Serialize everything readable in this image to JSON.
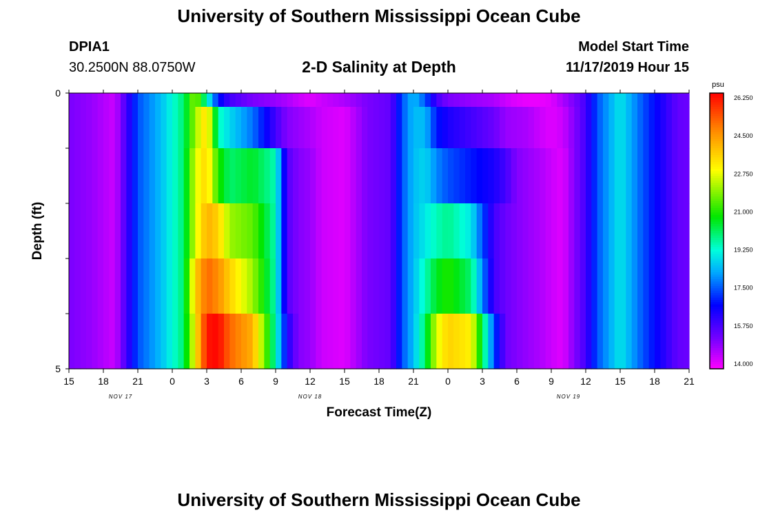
{
  "header": {
    "title": "University of Southern Mississippi Ocean Cube",
    "station": "DPIA1",
    "location": "30.2500N 88.0750W",
    "product": "2-D Salinity at Depth",
    "start_label": "Model Start Time",
    "start_value": "11/17/2019 Hour 15",
    "footer_title": "University of Southern Mississippi Ocean Cube"
  },
  "colorbar": {
    "unit": "psu",
    "ticks": [
      "26.250",
      "24.500",
      "22.750",
      "21.000",
      "19.250",
      "17.500",
      "15.750",
      "14.000"
    ],
    "min": 14.0,
    "max": 26.25
  },
  "chart_data": {
    "type": "heatmap",
    "title": "2-D Salinity at Depth",
    "xlabel": "Forecast Time(Z)",
    "ylabel": "Depth (ft)",
    "y_tick_labels": [
      "0",
      "5"
    ],
    "ylim": [
      0,
      5
    ],
    "x_tick_labels": [
      "15",
      "18",
      "21",
      "0",
      "3",
      "6",
      "9",
      "12",
      "15",
      "18",
      "21",
      "0",
      "3",
      "6",
      "9",
      "12",
      "15",
      "18",
      "21"
    ],
    "date_labels": [
      {
        "label": "NOV 17",
        "hour_index": 4.5
      },
      {
        "label": "NOV 18",
        "hour_index": 21
      },
      {
        "label": "NOV 19",
        "hour_index": 43.5
      }
    ],
    "x_hours_from_start": [
      0,
      54
    ],
    "depth_levels": [
      0,
      0.5,
      1.5,
      2.5,
      3.5,
      4.5
    ],
    "value_unit": "psu",
    "anchor_hours": [
      0,
      2,
      4,
      5,
      6,
      8,
      10,
      11,
      12,
      13,
      14,
      16,
      18,
      19,
      20,
      21,
      22,
      24,
      26,
      28,
      29,
      30,
      31,
      32,
      33,
      35,
      37,
      38,
      39,
      40,
      41,
      42,
      43,
      44,
      45,
      46,
      48,
      50,
      53,
      54
    ],
    "salinity": [
      [
        15.3,
        15.0,
        14.5,
        16.0,
        17.5,
        18.5,
        20.0,
        22.0,
        19.5,
        17.0,
        16.0,
        15.3,
        15.0,
        14.8,
        14.5,
        14.3,
        14.5,
        14.8,
        15.3,
        15.6,
        17.5,
        18.5,
        17.6,
        16.0,
        15.3,
        15.0,
        14.8,
        14.5,
        14.3,
        14.2,
        14.2,
        14.3,
        14.8,
        15.3,
        16.0,
        17.5,
        19.0,
        17.5,
        15.6,
        15.5
      ],
      [
        15.3,
        15.0,
        14.5,
        16.0,
        17.5,
        18.5,
        20.0,
        22.0,
        23.5,
        19.5,
        18.8,
        17.8,
        16.0,
        15.2,
        15.0,
        14.8,
        14.5,
        14.3,
        15.3,
        15.6,
        17.5,
        18.5,
        18.5,
        17.0,
        16.5,
        16.0,
        15.5,
        15.0,
        14.9,
        14.8,
        14.5,
        14.3,
        14.5,
        15.2,
        16.0,
        17.5,
        19.0,
        17.5,
        15.6,
        15.5
      ],
      [
        15.3,
        15.0,
        14.5,
        16.0,
        17.5,
        18.5,
        20.0,
        22.5,
        23.5,
        21.0,
        20.0,
        20.5,
        19.5,
        15.8,
        15.2,
        15.0,
        14.5,
        14.3,
        15.3,
        15.6,
        17.5,
        18.5,
        18.8,
        18.0,
        17.5,
        17.0,
        16.5,
        16.0,
        15.2,
        15.0,
        14.8,
        14.5,
        14.3,
        15.2,
        16.0,
        17.5,
        19.0,
        17.5,
        15.6,
        15.5
      ],
      [
        15.3,
        15.0,
        14.5,
        16.0,
        17.5,
        18.5,
        20.0,
        22.5,
        24.0,
        23.5,
        22.0,
        21.5,
        19.5,
        15.8,
        15.2,
        15.0,
        14.5,
        14.3,
        15.3,
        15.6,
        17.5,
        18.5,
        19.0,
        19.5,
        19.8,
        19.0,
        16.0,
        15.5,
        15.2,
        15.0,
        14.8,
        14.5,
        14.3,
        15.2,
        16.0,
        17.5,
        19.0,
        17.5,
        15.6,
        15.5
      ],
      [
        15.3,
        15.0,
        14.5,
        16.0,
        17.5,
        18.5,
        20.0,
        23.5,
        25.0,
        24.5,
        23.5,
        22.0,
        19.5,
        15.8,
        15.2,
        15.0,
        14.5,
        14.3,
        15.3,
        15.6,
        17.5,
        18.5,
        19.5,
        20.5,
        21.0,
        20.0,
        16.0,
        15.5,
        15.2,
        15.0,
        14.8,
        14.5,
        14.3,
        15.2,
        16.0,
        17.5,
        19.0,
        17.5,
        15.6,
        15.5
      ],
      [
        15.3,
        15.0,
        14.5,
        16.0,
        17.5,
        18.5,
        20.0,
        23.0,
        26.0,
        26.2,
        25.0,
        24.0,
        19.5,
        16.5,
        15.2,
        15.0,
        14.5,
        14.3,
        15.3,
        15.6,
        17.5,
        18.5,
        20.0,
        22.5,
        23.5,
        23.0,
        17.5,
        15.5,
        15.2,
        15.0,
        14.8,
        14.5,
        14.3,
        15.2,
        16.0,
        17.5,
        19.0,
        17.5,
        15.6,
        15.5
      ]
    ]
  }
}
